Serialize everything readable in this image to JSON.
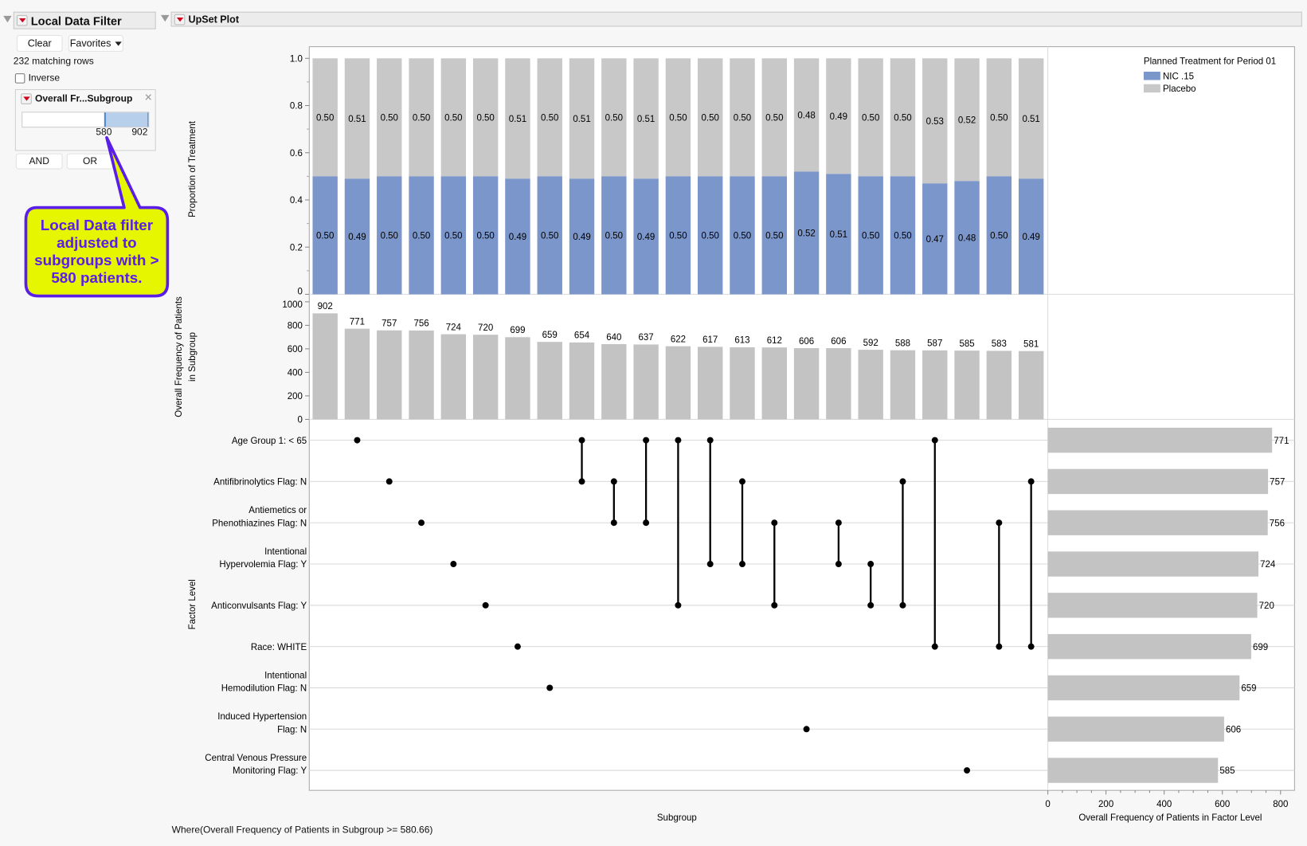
{
  "filter_panel": {
    "title": "Local Data Filter",
    "clear_label": "Clear",
    "favorites_label": "Favorites",
    "matching_rows": "232 matching rows",
    "inverse_label": "Inverse",
    "inverse_checked": false,
    "range_filter": {
      "title": "Overall Fr...Subgroup",
      "min_label": "580",
      "max_label": "902",
      "selected_range": [
        580,
        902
      ]
    },
    "and_label": "AND",
    "or_label": "OR"
  },
  "callout": {
    "text": "Local Data filter adjusted to subgroups with > 580 patients.",
    "fill": "#e6f500",
    "border": "#5a1ee8"
  },
  "plot": {
    "title": "UpSet Plot",
    "where_clause": "Where(Overall Frequency of Patients in Subgroup >= 580.66)"
  },
  "chart_data": [
    {
      "type": "bar",
      "stacked": true,
      "ylabel": "Proportion of Treatment",
      "ylim": [
        0,
        1
      ],
      "yticks": [
        "0",
        "0.2",
        "0.4",
        "0.6",
        "0.8",
        "1.0"
      ],
      "legend": {
        "title": "Planned Treatment for Period 01",
        "position": "top-right"
      },
      "series": [
        {
          "name": "NIC .15",
          "color": "#7b96cb",
          "values": [
            0.5,
            0.49,
            0.5,
            0.5,
            0.5,
            0.5,
            0.49,
            0.5,
            0.49,
            0.5,
            0.49,
            0.5,
            0.5,
            0.5,
            0.5,
            0.52,
            0.51,
            0.5,
            0.5,
            0.47,
            0.48,
            0.5,
            0.49
          ]
        },
        {
          "name": "Placebo",
          "color": "#c8c8c8",
          "values": [
            0.5,
            0.51,
            0.5,
            0.5,
            0.5,
            0.5,
            0.51,
            0.5,
            0.51,
            0.5,
            0.51,
            0.5,
            0.5,
            0.5,
            0.5,
            0.48,
            0.49,
            0.5,
            0.5,
            0.53,
            0.52,
            0.5,
            0.51
          ]
        }
      ]
    },
    {
      "type": "bar",
      "ylabel": "Overall Frequency of Patients in Subgroup",
      "ylim": [
        0,
        1000
      ],
      "yticks": [
        "0",
        "200",
        "400",
        "600",
        "800",
        "1000"
      ],
      "values": [
        902,
        771,
        757,
        756,
        724,
        720,
        699,
        659,
        654,
        640,
        637,
        622,
        617,
        613,
        612,
        606,
        606,
        592,
        588,
        587,
        585,
        583,
        581
      ],
      "color": "#c3c3c3"
    },
    {
      "type": "matrix",
      "xlabel": "Subgroup",
      "ylabel": "Factor Level",
      "factor_levels": [
        "Age Group 1: < 65",
        "Antifibrinolytics Flag: N",
        "Antiemetics or Phenothiazines Flag: N",
        "Intentional Hypervolemia Flag: Y",
        "Anticonvulsants Flag: Y",
        "Race: WHITE",
        "Intentional Hemodilution Flag: N",
        "Induced Hypertension Flag: N",
        "Central Venous Pressure Monitoring Flag: Y"
      ],
      "factor_level_lines": [
        [
          "Age Group 1: < 65"
        ],
        [
          "Antifibrinolytics Flag: N"
        ],
        [
          "Antiemetics or",
          "Phenothiazines Flag: N"
        ],
        [
          "Intentional",
          "Hypervolemia Flag: Y"
        ],
        [
          "Anticonvulsants Flag: Y"
        ],
        [
          "Race: WHITE"
        ],
        [
          "Intentional",
          "Hemodilution Flag: N"
        ],
        [
          "Induced Hypertension",
          "Flag: N"
        ],
        [
          "Central Venous Pressure",
          "Monitoring Flag: Y"
        ]
      ],
      "memberships": [
        [],
        [
          0
        ],
        [
          1
        ],
        [
          2
        ],
        [
          3
        ],
        [
          4
        ],
        [
          5
        ],
        [
          6
        ],
        [
          0,
          1
        ],
        [
          1,
          2
        ],
        [
          0,
          2
        ],
        [
          0,
          4
        ],
        [
          0,
          3
        ],
        [
          1,
          3
        ],
        [
          2,
          4
        ],
        [
          7
        ],
        [
          2,
          3
        ],
        [
          3,
          4
        ],
        [
          1,
          4
        ],
        [
          0,
          5
        ],
        [
          8
        ],
        [
          2,
          5
        ],
        [
          1,
          5
        ]
      ]
    },
    {
      "type": "bar",
      "orientation": "horizontal",
      "xlabel": "Overall Frequency of Patients in Factor Level",
      "xlim": [
        0,
        800
      ],
      "xticks": [
        "0",
        "200",
        "400",
        "600",
        "800"
      ],
      "values": [
        771,
        757,
        756,
        724,
        720,
        699,
        659,
        606,
        585
      ],
      "color": "#c3c3c3"
    }
  ]
}
